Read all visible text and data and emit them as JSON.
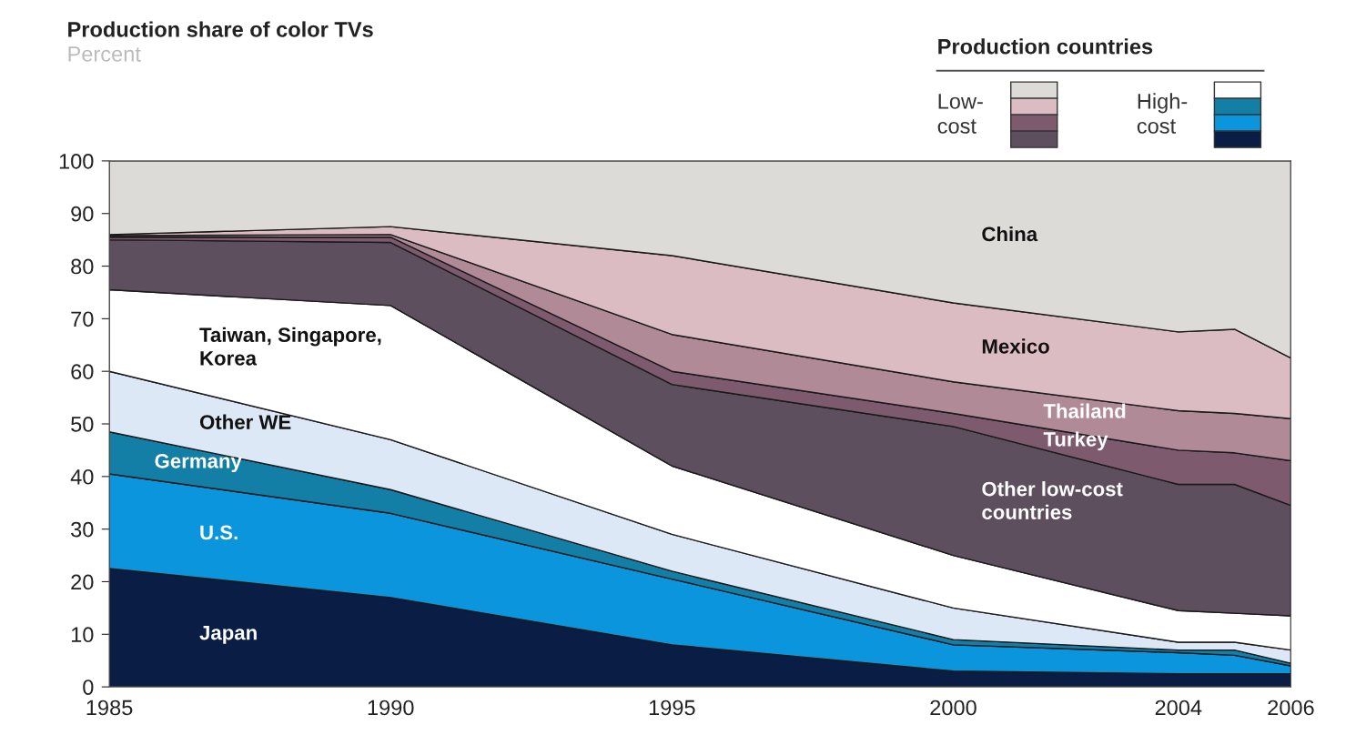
{
  "chart_data": {
    "type": "area",
    "stacked": true,
    "title": "Production share of color TVs",
    "subtitle": "Percent",
    "legend_title": "Production countries",
    "annotations": [
      "Low-\ncost",
      "High-\ncost"
    ],
    "x": [
      1985,
      1990,
      1995,
      2000,
      2004,
      2005,
      2006
    ],
    "xlim": [
      1985,
      2006
    ],
    "xticks": [
      1985,
      1990,
      1995,
      2000,
      2004,
      2006
    ],
    "ylim": [
      0,
      100
    ],
    "yticks": [
      0,
      10,
      20,
      30,
      40,
      50,
      60,
      70,
      80,
      90,
      100
    ],
    "grid": false,
    "series": [
      {
        "name": "Japan",
        "color": "#0a1e45",
        "values": [
          22.5,
          17,
          8,
          3,
          2.5,
          2.5,
          2.5
        ]
      },
      {
        "name": "U.S.",
        "color": "#0a95dd",
        "values": [
          18,
          16,
          12.5,
          5,
          4,
          3.5,
          1.5
        ]
      },
      {
        "name": "Germany",
        "color": "#137ea6",
        "values": [
          8,
          4.5,
          1.5,
          1,
          0.5,
          1,
          0.5
        ]
      },
      {
        "name": "Other WE",
        "color": "#dde8f7",
        "values": [
          11.5,
          9.5,
          7,
          6,
          1.5,
          1.5,
          2.5
        ]
      },
      {
        "name": "Taiwan, Singapore,\nKorea",
        "color": "#ffffff",
        "values": [
          15.5,
          25.5,
          13,
          10,
          6,
          5.5,
          6.5
        ]
      },
      {
        "name": "Other low-cost\ncountries",
        "color": "#5e4f5e",
        "values": [
          9.5,
          12,
          15.5,
          24.5,
          24,
          24.5,
          21
        ]
      },
      {
        "name": "Turkey",
        "color": "#7d5a6e",
        "values": [
          0.5,
          1,
          2.5,
          2.5,
          6.5,
          6,
          8.5
        ]
      },
      {
        "name": "Thailand",
        "color": "#b08a97",
        "values": [
          0.3,
          0.5,
          7,
          6,
          7.5,
          7.5,
          8
        ]
      },
      {
        "name": "Mexico",
        "color": "#dbbcc3",
        "values": [
          0.2,
          1.5,
          15,
          15,
          15,
          16,
          11.5
        ]
      },
      {
        "name": "China",
        "color": "#dddbd8",
        "values": [
          14,
          12.5,
          18,
          27,
          32.5,
          32,
          37.5
        ]
      }
    ]
  }
}
